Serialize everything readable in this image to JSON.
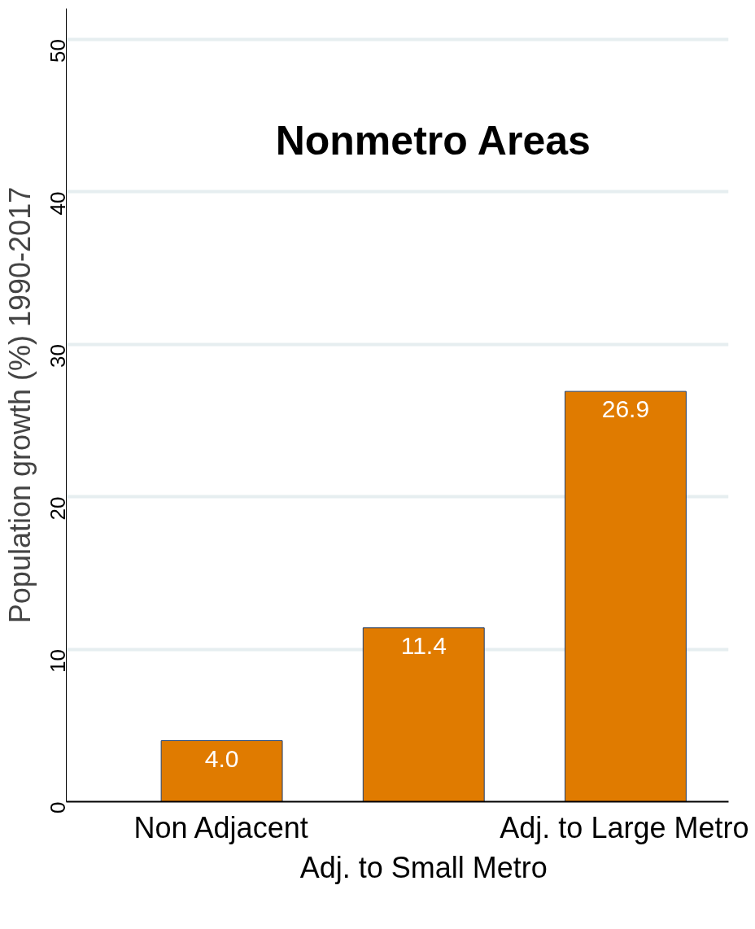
{
  "chart_data": {
    "type": "bar",
    "title": "Nonmetro Areas",
    "ylabel": "Population growth (%) 1990-2017",
    "categories": [
      "Non Adjacent",
      "Adj. to Small Metro",
      "Adj. to Large Metro"
    ],
    "values": [
      4.0,
      11.4,
      26.9
    ],
    "value_labels": [
      "4.0",
      "11.4",
      "26.9"
    ],
    "color": "#e07b00",
    "ylim": [
      0,
      52
    ],
    "yticks": [
      0,
      10,
      20,
      30,
      40,
      50
    ],
    "grid": "y"
  }
}
